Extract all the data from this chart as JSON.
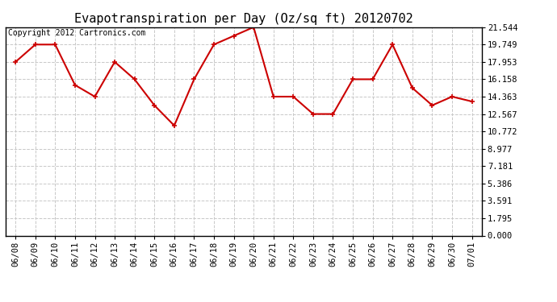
{
  "title": "Evapotranspiration per Day (Oz/sq ft) 20120702",
  "copyright_text": "Copyright 2012 Cartronics.com",
  "x_labels": [
    "06/08",
    "06/09",
    "06/10",
    "06/11",
    "06/12",
    "06/13",
    "06/14",
    "06/15",
    "06/16",
    "06/17",
    "06/18",
    "06/19",
    "06/20",
    "06/21",
    "06/22",
    "06/23",
    "06/24",
    "06/25",
    "06/26",
    "06/27",
    "06/28",
    "06/29",
    "06/30",
    "07/01"
  ],
  "y_values": [
    17.953,
    19.749,
    19.749,
    15.56,
    14.363,
    17.953,
    16.158,
    13.465,
    11.37,
    16.158,
    19.749,
    20.647,
    21.544,
    14.363,
    14.363,
    12.567,
    12.567,
    16.158,
    16.158,
    19.749,
    15.26,
    13.465,
    14.363,
    13.865
  ],
  "y_ticks": [
    0.0,
    1.795,
    3.591,
    5.386,
    7.181,
    8.977,
    10.772,
    12.567,
    14.363,
    16.158,
    17.953,
    19.749,
    21.544
  ],
  "y_min": 0.0,
  "y_max": 21.544,
  "line_color": "#cc0000",
  "marker": "+",
  "marker_size": 5,
  "line_width": 1.5,
  "bg_color": "#ffffff",
  "grid_color": "#c8c8c8",
  "title_fontsize": 11,
  "copyright_fontsize": 7,
  "tick_fontsize": 7.5
}
